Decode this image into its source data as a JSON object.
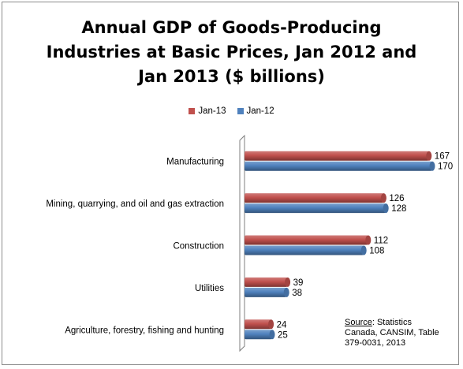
{
  "chart_data": {
    "type": "bar",
    "orientation": "horizontal",
    "title_lines": [
      "Annual GDP of Goods-Producing",
      "Industries at Basic Prices, Jan 2012 and",
      "Jan 2013 ($ billions)"
    ],
    "categories": [
      "Manufacturing",
      "Mining, quarrying, and oil and gas extraction",
      "Construction",
      "Utilities",
      "Agriculture, forestry, fishing and hunting"
    ],
    "series": [
      {
        "name": "Jan-13",
        "color": "#c0504d",
        "values": [
          167,
          126,
          112,
          39,
          24
        ]
      },
      {
        "name": "Jan-12",
        "color": "#4f81bd",
        "values": [
          170,
          128,
          108,
          38,
          25
        ]
      }
    ],
    "xlim": [
      0,
      180
    ],
    "legend_position": "top-center",
    "grid": false
  },
  "source": {
    "heading": "Source",
    "text_line1": ": Statistics",
    "text_line2": "Canada, CANSIM, Table",
    "text_line3": "379-0031, 2013"
  }
}
